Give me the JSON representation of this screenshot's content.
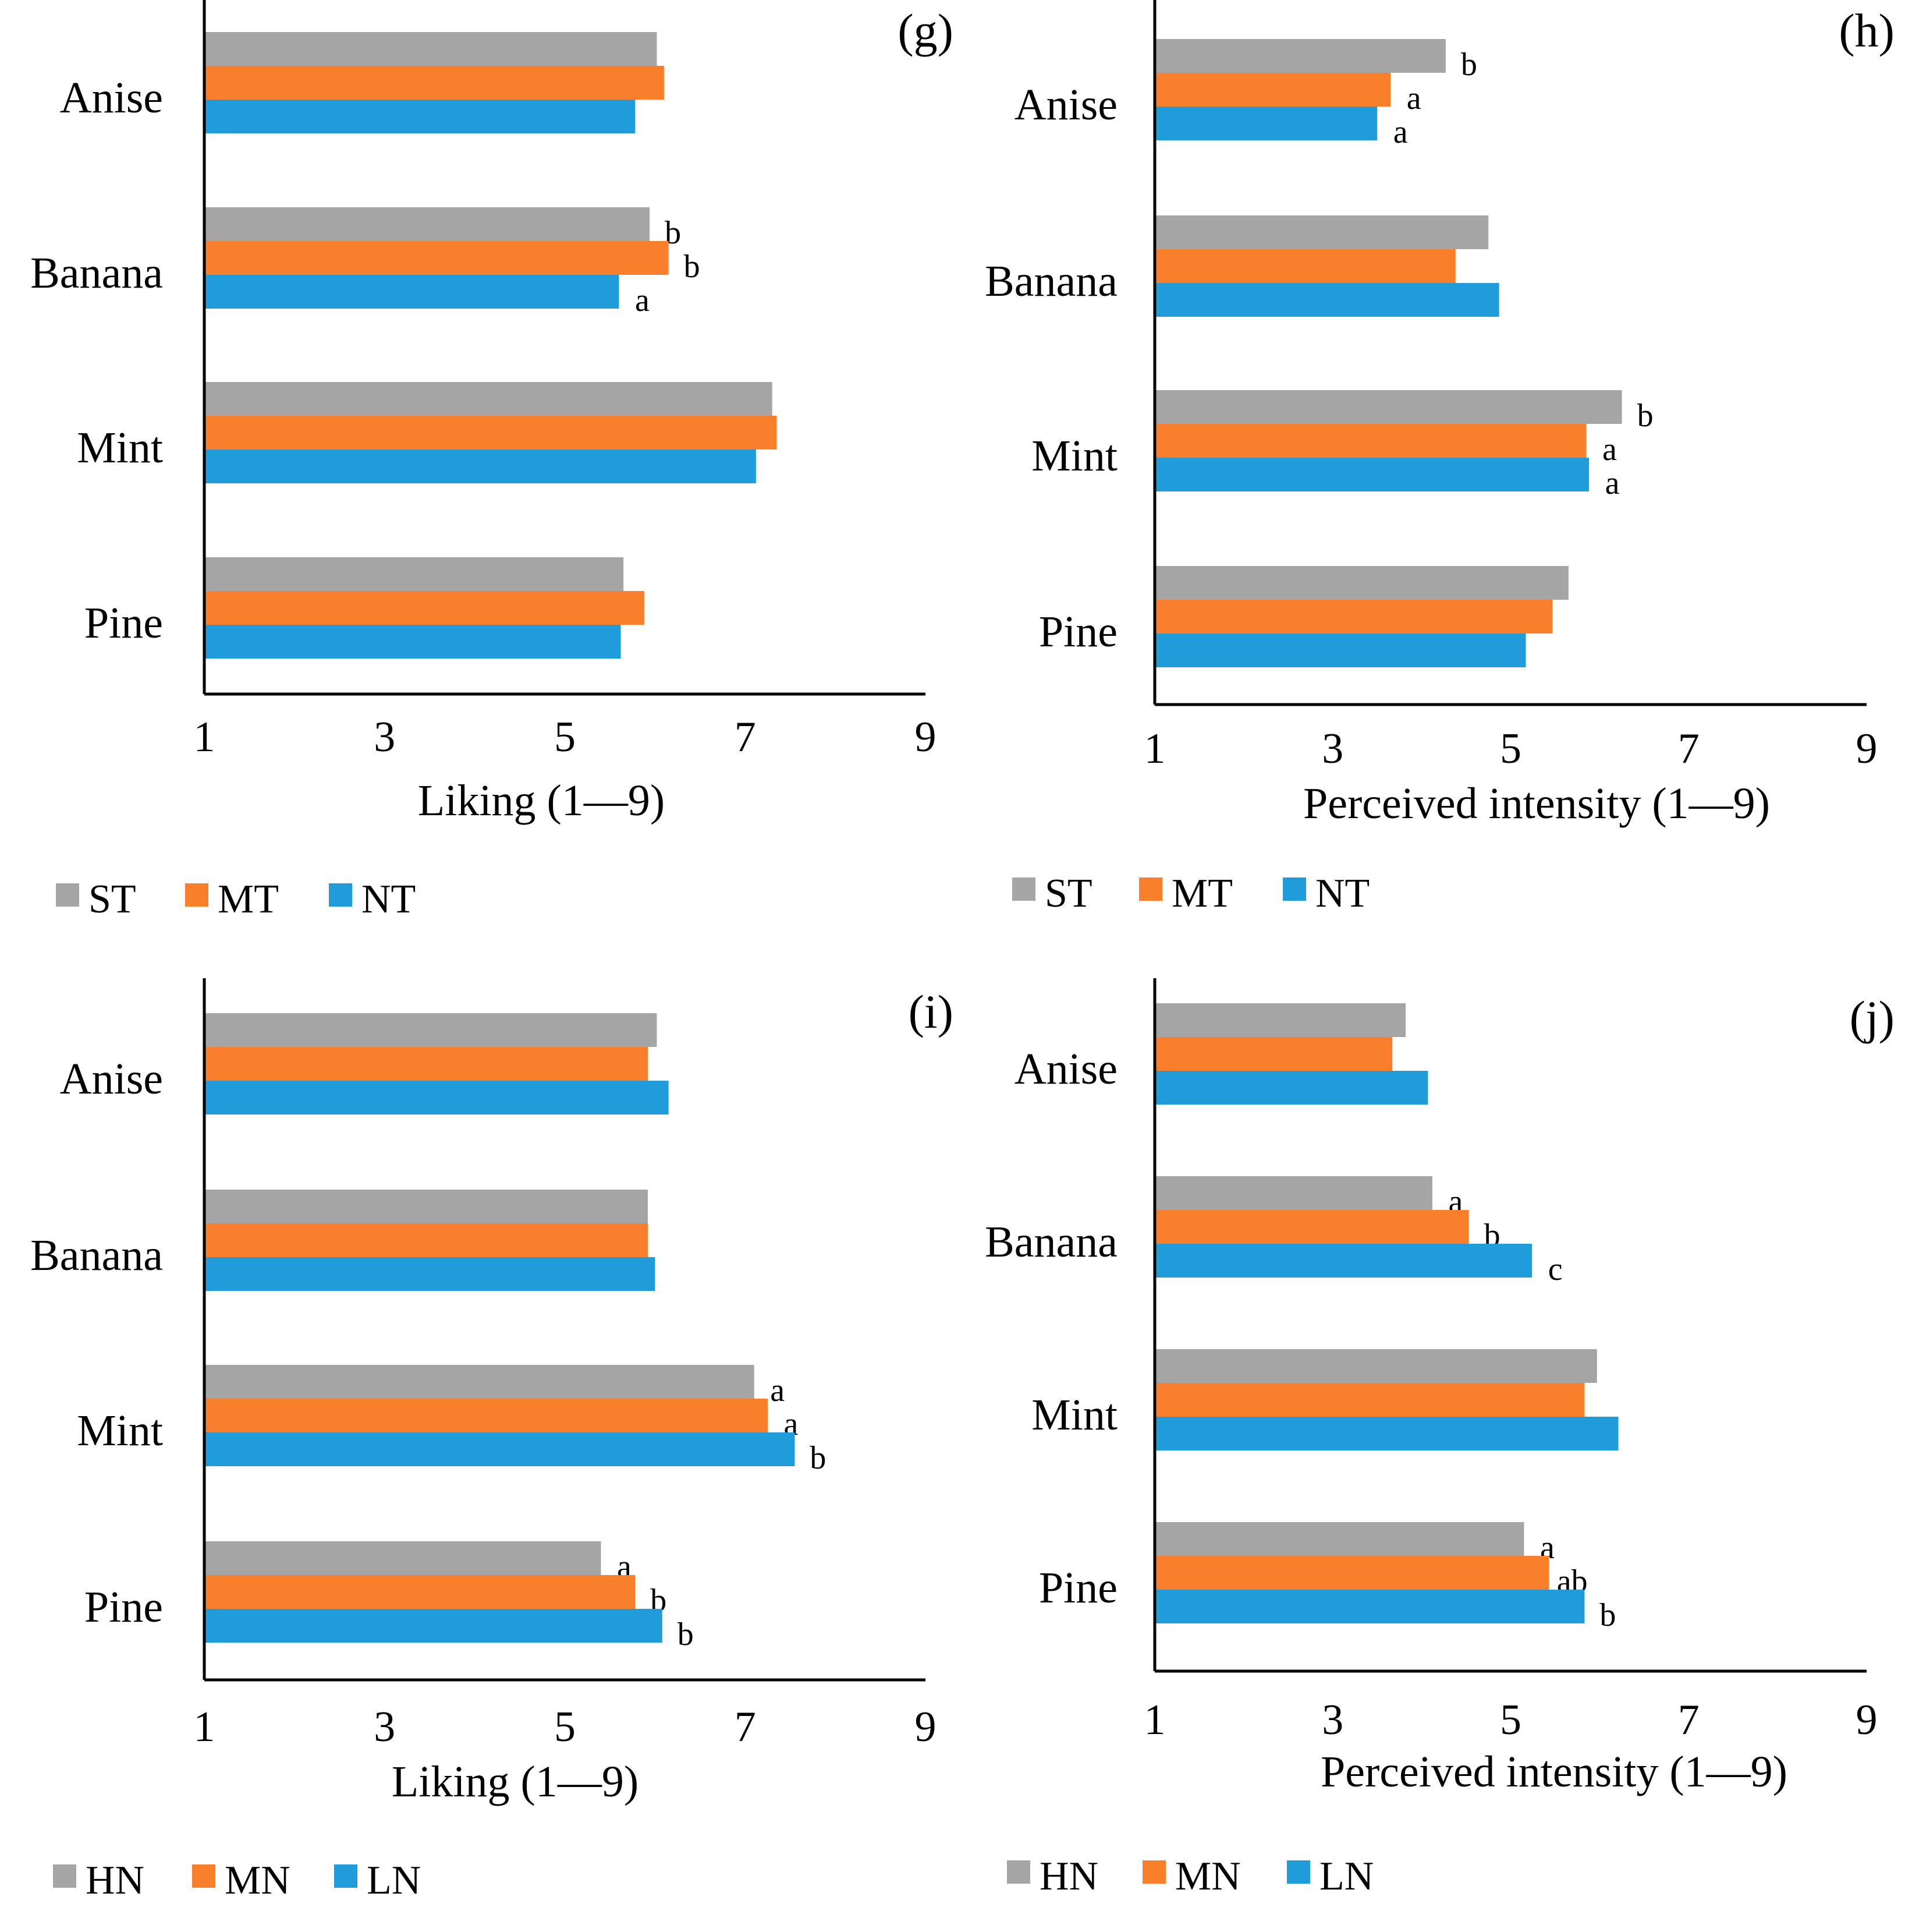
{
  "colors": {
    "gray": "#A5A5A5",
    "orange": "#F97F2D",
    "blue": "#1F9CD9",
    "axis": "#000000",
    "sig_gray": "#707070"
  },
  "chart_data": [
    {
      "panel": "(g)",
      "type": "bar",
      "orientation": "horizontal",
      "categories": [
        "Anise",
        "Banana",
        "Mint",
        "Pine"
      ],
      "xlabel": "Liking  (1—9)",
      "xlim": [
        1,
        9
      ],
      "xticks": [
        "1",
        "3",
        "5",
        "7",
        "9"
      ],
      "legend": [
        "ST",
        "MT",
        "NT"
      ],
      "series": [
        {
          "name": "ST",
          "color": "#A5A5A5",
          "values": [
            6.02,
            5.94,
            7.3,
            5.65
          ],
          "sig": [
            "",
            "b",
            "",
            ""
          ]
        },
        {
          "name": "MT",
          "color": "#F97F2D",
          "values": [
            6.1,
            6.15,
            7.35,
            5.88
          ],
          "sig": [
            "",
            "b",
            "",
            ""
          ]
        },
        {
          "name": "NT",
          "color": "#1F9CD9",
          "values": [
            5.78,
            5.6,
            7.12,
            5.62
          ],
          "sig": [
            "",
            "a",
            "",
            ""
          ]
        }
      ]
    },
    {
      "panel": "(h)",
      "type": "bar",
      "orientation": "horizontal",
      "categories": [
        "Anise",
        "Banana",
        "Mint",
        "Pine"
      ],
      "xlabel": "Perceived intensity  (1—9)",
      "xlim": [
        1,
        9
      ],
      "xticks": [
        "1",
        "3",
        "5",
        "7",
        "9"
      ],
      "legend": [
        "ST",
        "MT",
        "NT"
      ],
      "series": [
        {
          "name": "ST",
          "color": "#A5A5A5",
          "values": [
            4.27,
            4.75,
            6.25,
            5.65
          ],
          "sig": [
            "b",
            "",
            "b",
            ""
          ]
        },
        {
          "name": "MT",
          "color": "#F97F2D",
          "values": [
            3.65,
            4.38,
            5.85,
            5.47
          ],
          "sig": [
            "a",
            "",
            "a",
            ""
          ]
        },
        {
          "name": "NT",
          "color": "#1F9CD9",
          "values": [
            3.5,
            4.87,
            5.88,
            5.17
          ],
          "sig": [
            "a",
            "",
            "a",
            ""
          ]
        }
      ]
    },
    {
      "panel": "(i)",
      "type": "bar",
      "orientation": "horizontal",
      "categories": [
        "Anise",
        "Banana",
        "Mint",
        "Pine"
      ],
      "xlabel": "Liking  (1—9)",
      "xlim": [
        1,
        9
      ],
      "xticks": [
        "1",
        "3",
        "5",
        "7",
        "9"
      ],
      "legend": [
        "HN",
        "MN",
        "LN"
      ],
      "series": [
        {
          "name": "HN",
          "color": "#A5A5A5",
          "values": [
            6.02,
            5.92,
            7.1,
            5.4
          ],
          "sig": [
            "",
            "",
            "a",
            "a"
          ]
        },
        {
          "name": "MN",
          "color": "#F97F2D",
          "values": [
            5.92,
            5.92,
            7.25,
            5.78
          ],
          "sig": [
            "",
            "",
            "a",
            "b"
          ]
        },
        {
          "name": "LN",
          "color": "#1F9CD9",
          "values": [
            6.15,
            6.0,
            7.55,
            6.08
          ],
          "sig": [
            "",
            "",
            "b",
            "b"
          ]
        }
      ]
    },
    {
      "panel": "(j)",
      "type": "bar",
      "orientation": "horizontal",
      "categories": [
        "Anise",
        "Banana",
        "Mint",
        "Pine"
      ],
      "xlabel": "Perceived intensity  (1—9)",
      "xlim": [
        1,
        9
      ],
      "xticks": [
        "1",
        "3",
        "5",
        "7",
        "9"
      ],
      "legend": [
        "HN",
        "MN",
        "LN"
      ],
      "series": [
        {
          "name": "HN",
          "color": "#A5A5A5",
          "values": [
            3.82,
            4.12,
            5.97,
            5.15
          ],
          "sig": [
            "",
            "a",
            "",
            "a"
          ]
        },
        {
          "name": "MN",
          "color": "#F97F2D",
          "values": [
            3.67,
            4.53,
            5.83,
            5.43
          ],
          "sig": [
            "",
            "b",
            "",
            "ab"
          ]
        },
        {
          "name": "LN",
          "color": "#1F9CD9",
          "values": [
            4.07,
            5.24,
            6.21,
            5.83
          ],
          "sig": [
            "",
            "c",
            "",
            "b"
          ]
        }
      ]
    }
  ]
}
